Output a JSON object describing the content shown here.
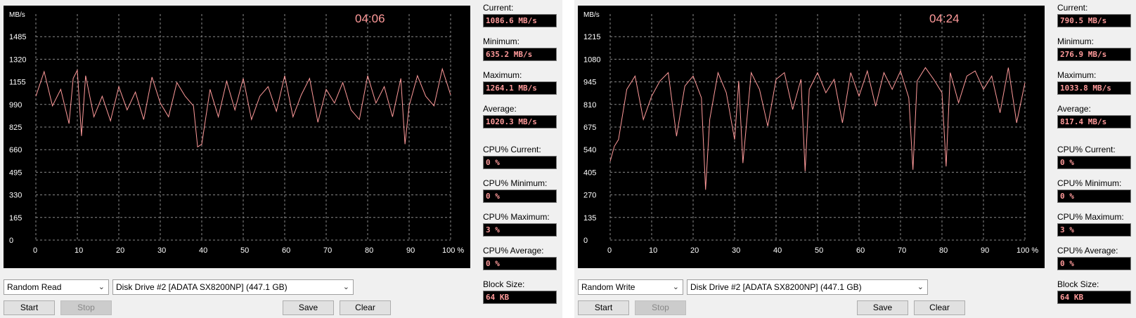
{
  "panels": [
    {
      "time": "04:06",
      "unit": "MB/s",
      "y_ticks": [
        "1485",
        "1320",
        "1155",
        "990",
        "825",
        "660",
        "495",
        "330",
        "165",
        "0"
      ],
      "x_ticks": [
        "0",
        "10",
        "20",
        "30",
        "40",
        "50",
        "60",
        "70",
        "80",
        "90",
        "100 %"
      ],
      "stats": {
        "current_label": "Current:",
        "current": "1086.6 MB/s",
        "minimum_label": "Minimum:",
        "minimum": "635.2 MB/s",
        "maximum_label": "Maximum:",
        "maximum": "1264.1 MB/s",
        "average_label": "Average:",
        "average": "1020.3 MB/s",
        "cpu_current_label": "CPU% Current:",
        "cpu_current": "0 %",
        "cpu_minimum_label": "CPU% Minimum:",
        "cpu_minimum": "0 %",
        "cpu_maximum_label": "CPU% Maximum:",
        "cpu_maximum": "3 %",
        "cpu_average_label": "CPU% Average:",
        "cpu_average": "0 %",
        "block_size_label": "Block Size:",
        "block_size": "64 KB"
      },
      "mode": "Random Read",
      "drive": "Disk Drive #2  [ADATA SX8200NP]  (447.1 GB)",
      "buttons": {
        "start": "Start",
        "stop": "Stop",
        "save": "Save",
        "clear": "Clear"
      }
    },
    {
      "time": "04:24",
      "unit": "MB/s",
      "y_ticks": [
        "1215",
        "1080",
        "945",
        "810",
        "675",
        "540",
        "405",
        "270",
        "135",
        "0"
      ],
      "x_ticks": [
        "0",
        "10",
        "20",
        "30",
        "40",
        "50",
        "60",
        "70",
        "80",
        "90",
        "100 %"
      ],
      "stats": {
        "current_label": "Current:",
        "current": "790.5 MB/s",
        "minimum_label": "Minimum:",
        "minimum": "276.9 MB/s",
        "maximum_label": "Maximum:",
        "maximum": "1033.8 MB/s",
        "average_label": "Average:",
        "average": "817.4 MB/s",
        "cpu_current_label": "CPU% Current:",
        "cpu_current": "0 %",
        "cpu_minimum_label": "CPU% Minimum:",
        "cpu_minimum": "0 %",
        "cpu_maximum_label": "CPU% Maximum:",
        "cpu_maximum": "3 %",
        "cpu_average_label": "CPU% Average:",
        "cpu_average": "0 %",
        "block_size_label": "Block Size:",
        "block_size": "64 KB"
      },
      "mode": "Random Write",
      "drive": "Disk Drive #2  [ADATA SX8200NP]  (447.1 GB)",
      "buttons": {
        "start": "Start",
        "stop": "Stop",
        "save": "Save",
        "clear": "Clear"
      }
    }
  ],
  "chart_data": [
    {
      "type": "line",
      "ylabel": "MB/s",
      "ylim": [
        0,
        1650
      ],
      "xlim": [
        0,
        100
      ],
      "grid": true,
      "series_color": "#ff9a9a",
      "x": [
        0,
        2,
        4,
        6,
        8,
        9,
        10,
        11,
        12,
        14,
        16,
        18,
        20,
        22,
        24,
        26,
        28,
        30,
        32,
        34,
        36,
        38,
        39,
        40,
        42,
        44,
        46,
        48,
        50,
        52,
        54,
        56,
        58,
        60,
        62,
        64,
        66,
        68,
        70,
        72,
        74,
        76,
        78,
        80,
        82,
        84,
        86,
        88,
        89,
        90,
        92,
        94,
        96,
        98,
        100
      ],
      "y": [
        1050,
        1230,
        980,
        1100,
        850,
        1180,
        1240,
        760,
        1200,
        900,
        1050,
        870,
        1120,
        950,
        1080,
        880,
        1190,
        1000,
        900,
        1150,
        1050,
        980,
        680,
        700,
        1100,
        900,
        1160,
        950,
        1180,
        880,
        1050,
        1120,
        940,
        1200,
        900,
        1060,
        1180,
        860,
        1100,
        1000,
        1150,
        950,
        880,
        1200,
        1000,
        1120,
        900,
        1180,
        700,
        980,
        1200,
        1050,
        980,
        1250,
        1060
      ]
    },
    {
      "type": "line",
      "ylabel": "MB/s",
      "ylim": [
        0,
        1350
      ],
      "xlim": [
        0,
        100
      ],
      "grid": true,
      "series_color": "#ff9a9a",
      "x": [
        0,
        1,
        2,
        4,
        6,
        8,
        10,
        12,
        14,
        16,
        18,
        20,
        22,
        23,
        24,
        26,
        28,
        30,
        31,
        32,
        34,
        36,
        38,
        40,
        42,
        44,
        46,
        47,
        48,
        50,
        52,
        54,
        56,
        58,
        60,
        62,
        64,
        66,
        68,
        70,
        72,
        73,
        74,
        76,
        78,
        80,
        81,
        82,
        84,
        86,
        88,
        90,
        92,
        94,
        96,
        98,
        100
      ],
      "y": [
        470,
        560,
        600,
        900,
        980,
        720,
        860,
        950,
        1000,
        620,
        920,
        980,
        850,
        300,
        720,
        1000,
        880,
        600,
        950,
        460,
        1000,
        900,
        680,
        960,
        1000,
        780,
        960,
        410,
        900,
        1000,
        880,
        960,
        700,
        1000,
        860,
        1010,
        800,
        1000,
        900,
        1010,
        850,
        420,
        950,
        1030,
        960,
        880,
        440,
        1000,
        820,
        980,
        1010,
        900,
        980,
        760,
        1030,
        700,
        940
      ]
    }
  ]
}
